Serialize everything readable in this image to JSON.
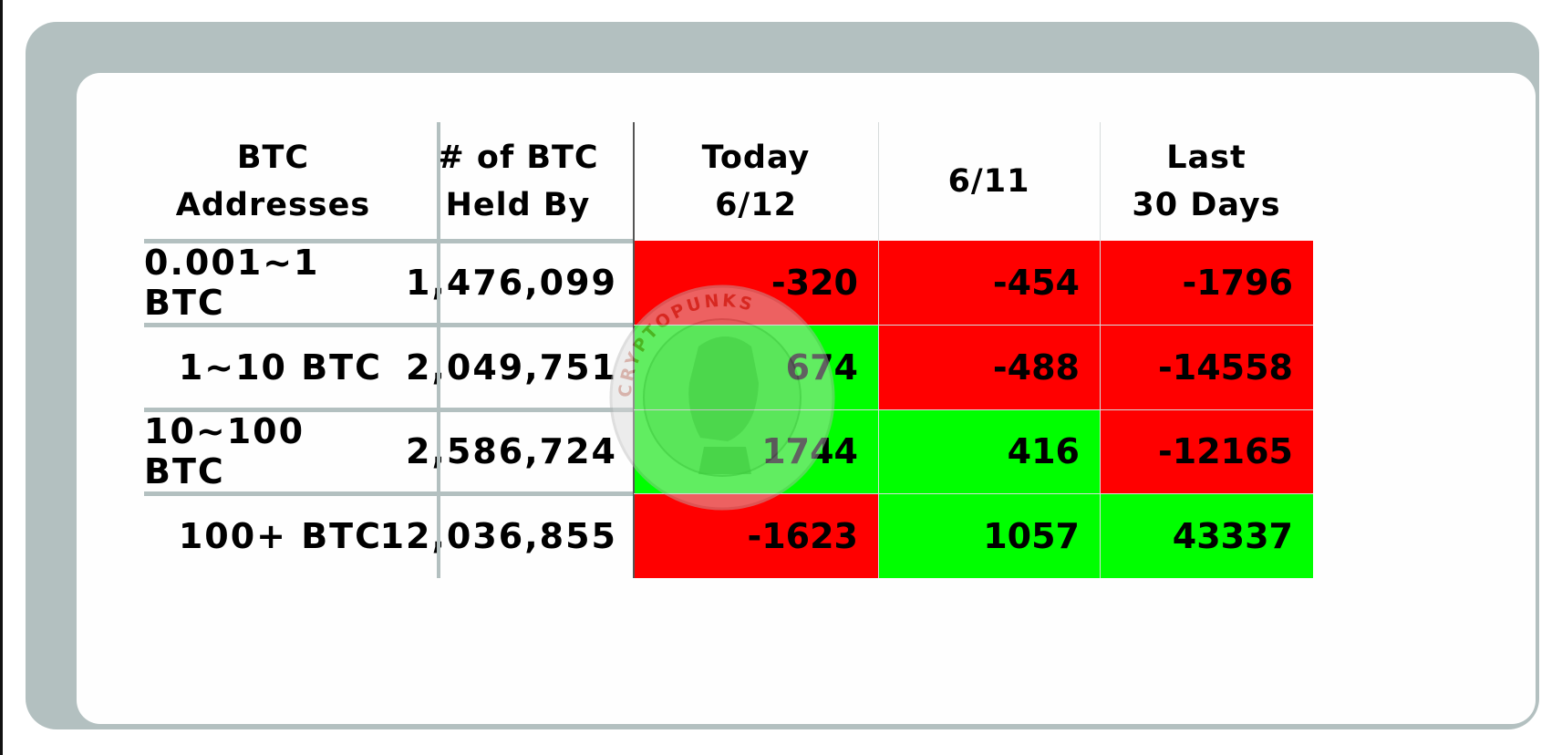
{
  "colors": {
    "negative": "#ff0000",
    "positive": "#00ff00",
    "frame": "#b3c0c0"
  },
  "chart_data": {
    "type": "table",
    "columns": [
      "BTC\nAddresses",
      "# of BTC\nHeld By",
      "Today\n6/12",
      "6/11",
      "Last\n30 Days"
    ],
    "rows": [
      {
        "label": "0.001~1 BTC",
        "held": "1,476,099",
        "values": [
          -320,
          -454,
          -1796
        ]
      },
      {
        "label": "1~10 BTC",
        "held": "2,049,751",
        "values": [
          674,
          -488,
          -14558
        ]
      },
      {
        "label": "10~100 BTC",
        "held": "2,586,724",
        "values": [
          1744,
          416,
          -12165
        ]
      },
      {
        "label": "100+ BTC",
        "held": "12,036,855",
        "values": [
          -1623,
          1057,
          43337
        ]
      }
    ]
  },
  "watermark": {
    "text": "CRYPTOPUNKS"
  }
}
